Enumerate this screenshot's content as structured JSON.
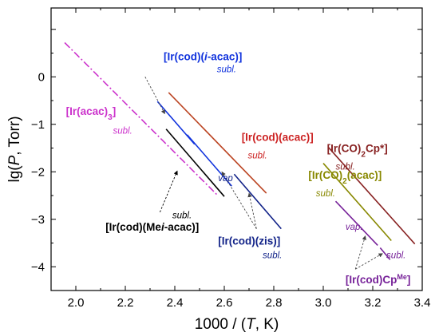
{
  "chart_data": {
    "type": "line",
    "title": "",
    "xlabel": "1000 / (T, K)",
    "ylabel": "lg(P, Torr)",
    "xlim": [
      1.9,
      3.4
    ],
    "ylim": [
      -4.5,
      1.45
    ],
    "x_ticks": [
      "2.0",
      "2.2",
      "2.4",
      "2.6",
      "2.8",
      "3.0",
      "3.2",
      "3.4"
    ],
    "y_ticks": [
      "0",
      "-1",
      "-2",
      "-3",
      "-4"
    ],
    "grid": false,
    "legend": "none",
    "series": [
      {
        "name": "[Ir(acac)3]",
        "dash": "dashdot",
        "color": "#cc33cc",
        "points": [
          [
            1.955,
            0.72
          ],
          [
            2.57,
            -2.48
          ]
        ]
      },
      {
        "name": "[Ir(cod)(i-acac)]",
        "color": "#1133dd",
        "points": [
          [
            2.33,
            -0.52
          ],
          [
            2.48,
            -1.42
          ]
        ]
      },
      {
        "name": "[Ir(cod)(Mei-acac)]",
        "color": "#000000",
        "points": [
          [
            2.365,
            -1.1
          ],
          [
            2.6,
            -2.52
          ]
        ]
      },
      {
        "name": "[Ir(cod)(zis)] vap.",
        "color": "#1133dd",
        "points": [
          [
            2.45,
            -1.22
          ],
          [
            2.63,
            -2.3
          ]
        ]
      },
      {
        "name": "[Ir(cod)(zis)] subl.",
        "color": "#112288",
        "points": [
          [
            2.64,
            -2.05
          ],
          [
            2.83,
            -3.2
          ]
        ]
      },
      {
        "name": "[Ir(cod)(acac)]",
        "color": "#bb4422",
        "points": [
          [
            2.375,
            -0.33
          ],
          [
            2.77,
            -2.45
          ]
        ]
      },
      {
        "name": "[Ir(CO)2(acac)]",
        "color": "#888800",
        "points": [
          [
            3.0,
            -1.82
          ],
          [
            3.275,
            -3.45
          ]
        ]
      },
      {
        "name": "[Ir(CO)2Cp*]",
        "color": "#882222",
        "points": [
          [
            3.02,
            -1.48
          ],
          [
            3.37,
            -3.52
          ]
        ]
      },
      {
        "name": "[Ir(cod)CpMe] vap.",
        "color": "#772299",
        "points": [
          [
            3.05,
            -2.62
          ],
          [
            3.22,
            -3.55
          ]
        ]
      },
      {
        "name": "[Ir(cod)CpMe] subl.",
        "color": "#772299",
        "points": [
          [
            3.23,
            -3.6
          ],
          [
            3.27,
            -3.85
          ]
        ]
      }
    ],
    "labels": [
      {
        "name": "ir-cod-i-acac",
        "parts": [
          {
            "t": "[Ir(cod)("
          },
          {
            "t": "i",
            "italic": true
          },
          {
            "t": "-acac)]"
          }
        ],
        "color": "#1133dd",
        "x": 2.355,
        "y": 0.35,
        "cls": "main"
      },
      {
        "name": "ir-cod-i-acac-subl",
        "parts": [
          {
            "t": "subl."
          }
        ],
        "color": "#1133dd",
        "x": 2.57,
        "y": 0.1,
        "cls": "note"
      },
      {
        "name": "ir-acac3",
        "parts": [
          {
            "t": "[Ir(acac)"
          },
          {
            "t": "3",
            "sub": true
          },
          {
            "t": "]"
          }
        ],
        "color": "#cc33cc",
        "x": 1.96,
        "y": -0.8,
        "cls": "main"
      },
      {
        "name": "ir-acac3-subl",
        "parts": [
          {
            "t": "subl."
          }
        ],
        "color": "#cc33cc",
        "x": 2.15,
        "y": -1.2,
        "cls": "note"
      },
      {
        "name": "ir-cod-acac",
        "parts": [
          {
            "t": "[Ir(cod)(acac)]"
          }
        ],
        "color": "#cc2222",
        "x": 2.67,
        "y": -1.35,
        "cls": "main"
      },
      {
        "name": "ir-cod-acac-subl",
        "parts": [
          {
            "t": "subl."
          }
        ],
        "color": "#cc2222",
        "x": 2.695,
        "y": -1.72,
        "cls": "note"
      },
      {
        "name": "ir-co2-cpstar",
        "parts": [
          {
            "t": "[Ir(CO)"
          },
          {
            "t": "2",
            "sub": true
          },
          {
            "t": "Cp*]"
          }
        ],
        "color": "#882222",
        "x": 3.015,
        "y": -1.58,
        "cls": "main"
      },
      {
        "name": "ir-co2-cpstar-subl",
        "parts": [
          {
            "t": "subl."
          }
        ],
        "color": "#882222",
        "x": 3.05,
        "y": -1.95,
        "cls": "note"
      },
      {
        "name": "ir-co2-acac",
        "parts": [
          {
            "t": "[Ir(CO)"
          },
          {
            "t": "2",
            "sub": true
          },
          {
            "t": "(acac)]"
          }
        ],
        "color": "#888800",
        "x": 2.94,
        "y": -2.15,
        "cls": "main"
      },
      {
        "name": "ir-co2-acac-subl",
        "parts": [
          {
            "t": "subl."
          }
        ],
        "color": "#888800",
        "x": 2.97,
        "y": -2.52,
        "cls": "note"
      },
      {
        "name": "ir-cod-zis-vap",
        "parts": [
          {
            "t": "vap"
          }
        ],
        "color": "#112288",
        "x": 2.575,
        "y": -2.2,
        "cls": "note"
      },
      {
        "name": "ir-cod-mei-acac-subl",
        "parts": [
          {
            "t": "subl."
          }
        ],
        "color": "#000000",
        "x": 2.39,
        "y": -2.98,
        "cls": "note"
      },
      {
        "name": "ir-cod-mei-acac",
        "parts": [
          {
            "t": "[Ir(cod)(Me"
          },
          {
            "t": "i",
            "italic": true
          },
          {
            "t": "-acac)]"
          }
        ],
        "color": "#000000",
        "x": 2.12,
        "y": -3.24,
        "cls": "main"
      },
      {
        "name": "ir-cod-zis",
        "parts": [
          {
            "t": "[Ir(cod)(zis)]"
          }
        ],
        "color": "#112288",
        "x": 2.575,
        "y": -3.53,
        "cls": "main"
      },
      {
        "name": "ir-cod-zis-subl",
        "parts": [
          {
            "t": "subl."
          }
        ],
        "color": "#112288",
        "x": 2.755,
        "y": -3.82,
        "cls": "note"
      },
      {
        "name": "ir-cod-cpme-vap",
        "parts": [
          {
            "t": "vap."
          }
        ],
        "color": "#772299",
        "x": 3.09,
        "y": -3.22,
        "cls": "note"
      },
      {
        "name": "ir-cod-cpme-subl",
        "parts": [
          {
            "t": "subl."
          }
        ],
        "color": "#772299",
        "x": 3.255,
        "y": -3.82,
        "cls": "note"
      },
      {
        "name": "ir-cod-cpme",
        "parts": [
          {
            "t": "[Ir(cod)Cp"
          },
          {
            "t": "Me",
            "sup": true
          },
          {
            "t": "]"
          }
        ],
        "color": "#772299",
        "x": 3.09,
        "y": -4.35,
        "cls": "main"
      }
    ],
    "pointers": [
      {
        "name": "pointer-ir-cod-i-acac",
        "color": "#1133dd",
        "from": [
          2.28,
          0.0
        ],
        "to": [
          2.36,
          -0.78
        ]
      },
      {
        "name": "pointer-ir-cod-mei-acac",
        "color": "#000000",
        "from": [
          2.34,
          -2.85
        ],
        "to": [
          2.41,
          -1.98
        ]
      },
      {
        "name": "pointer-ir-cod-zis-vap",
        "color": "#112288",
        "from": [
          2.73,
          -3.2
        ],
        "to": [
          2.59,
          -2.0
        ]
      },
      {
        "name": "pointer-ir-cod-zis-subl",
        "color": "#112288",
        "from": [
          2.73,
          -3.2
        ],
        "to": [
          2.7,
          -2.45
        ]
      },
      {
        "name": "pointer-ir-cod-cpme-vap",
        "color": "#772299",
        "from": [
          3.13,
          -4.05
        ],
        "to": [
          3.17,
          -3.35
        ]
      },
      {
        "name": "pointer-ir-cod-cpme-subl",
        "color": "#772299",
        "from": [
          3.13,
          -4.05
        ],
        "to": [
          3.24,
          -3.72
        ]
      }
    ]
  }
}
